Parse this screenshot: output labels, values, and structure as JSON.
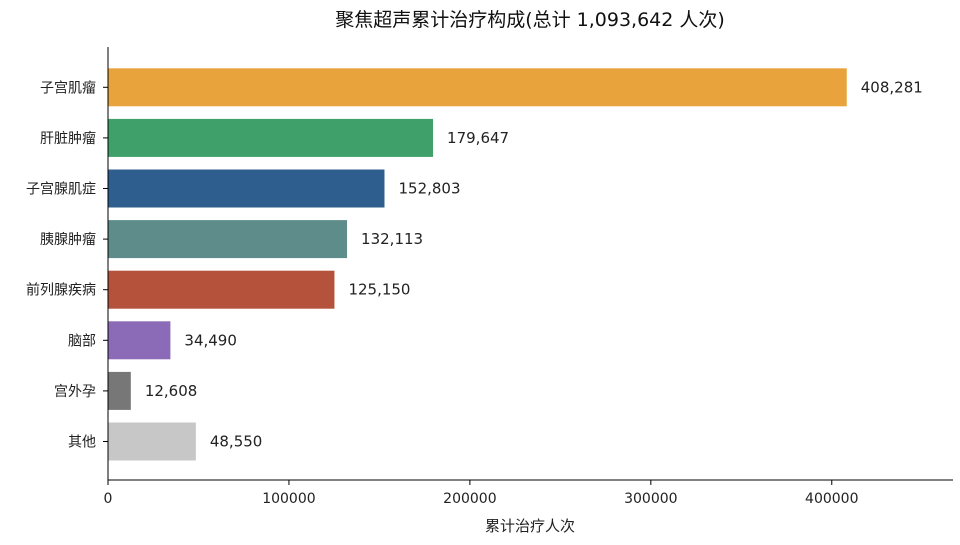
{
  "chart_data": {
    "type": "bar",
    "orientation": "horizontal",
    "title": "聚焦超声累计治疗构成(总计 1,093,642 人次)",
    "xlabel": "累计治疗人次",
    "ylabel": "",
    "xlim": [
      0,
      467000
    ],
    "x_ticks": [
      0,
      100000,
      200000,
      300000,
      400000
    ],
    "grid": false,
    "categories": [
      "子宫肌瘤",
      "肝脏肿瘤",
      "子宫腺肌症",
      "胰腺肿瘤",
      "前列腺疾病",
      "脑部",
      "宫外孕",
      "其他"
    ],
    "values": [
      408281,
      179647,
      152803,
      132113,
      125150,
      34490,
      12608,
      48550
    ],
    "value_labels": [
      "408,281",
      "179,647",
      "152,803",
      "132,113",
      "125,150",
      "34,490",
      "12,608",
      "48,550"
    ],
    "colors": [
      "#E8A33D",
      "#3FA06A",
      "#2D5E8E",
      "#5E8C8A",
      "#B5523B",
      "#8B6BB8",
      "#777777",
      "#C7C7C7"
    ]
  }
}
